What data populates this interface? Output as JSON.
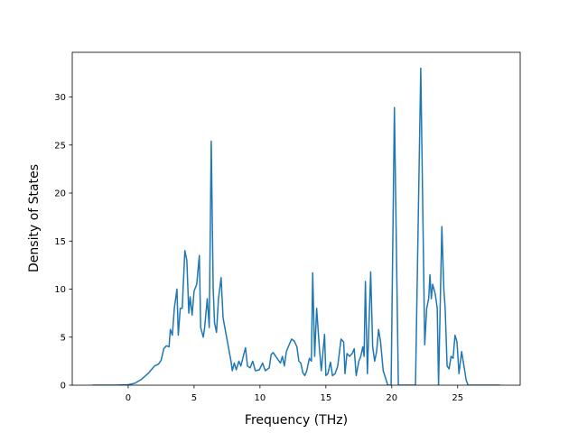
{
  "chart_data": {
    "type": "line",
    "xlabel": "Frequency (THz)",
    "ylabel": "Density of States",
    "color": "#1f77b4",
    "x": [
      -2.7,
      -1,
      0,
      0.5,
      1,
      1.5,
      2,
      2.3,
      2.5,
      2.7,
      2.9,
      3.1,
      3.2,
      3.35,
      3.5,
      3.7,
      3.8,
      3.95,
      4.1,
      4.3,
      4.45,
      4.6,
      4.7,
      4.85,
      5.0,
      5.2,
      5.4,
      5.5,
      5.7,
      5.8,
      6.0,
      6.15,
      6.3,
      6.45,
      6.55,
      6.7,
      6.85,
      7.05,
      7.2,
      7.4,
      7.6,
      7.8,
      7.9,
      8.05,
      8.2,
      8.4,
      8.55,
      8.9,
      9.05,
      9.25,
      9.45,
      9.65,
      9.95,
      10.2,
      10.4,
      10.7,
      10.85,
      11.0,
      11.3,
      11.55,
      11.7,
      11.85,
      12.0,
      12.15,
      12.4,
      12.6,
      12.8,
      12.95,
      13.1,
      13.25,
      13.4,
      13.55,
      13.75,
      13.9,
      14.0,
      14.15,
      14.3,
      14.5,
      14.65,
      14.75,
      14.9,
      15.0,
      15.15,
      15.35,
      15.5,
      15.7,
      15.9,
      16.15,
      16.35,
      16.45,
      16.6,
      16.8,
      17.0,
      17.15,
      17.3,
      17.5,
      17.65,
      17.8,
      17.9,
      18.0,
      18.15,
      18.4,
      18.55,
      18.7,
      18.85,
      19.0,
      19.15,
      19.35,
      19.7,
      19.95,
      20.2,
      20.5,
      21.8,
      22.2,
      22.5,
      22.65,
      22.8,
      22.9,
      23.0,
      23.1,
      23.3,
      23.45,
      23.55,
      23.8,
      23.95,
      24.05,
      24.2,
      24.35,
      24.5,
      24.65,
      24.8,
      24.95,
      25.1,
      25.3,
      25.5,
      25.65,
      25.8,
      28.2
    ],
    "values": [
      0,
      0,
      0.05,
      0.2,
      0.6,
      1.2,
      2.0,
      2.2,
      2.6,
      3.8,
      4.1,
      4.0,
      5.8,
      5.2,
      8.0,
      10.0,
      5.2,
      8.0,
      8.0,
      14.0,
      13.0,
      7.5,
      9.2,
      7.3,
      9.8,
      10.5,
      13.5,
      6.0,
      5.0,
      6.0,
      9.0,
      6.0,
      25.4,
      10.0,
      6.5,
      5.5,
      9.0,
      11.2,
      7.0,
      5.5,
      4.0,
      2.5,
      1.5,
      2.3,
      1.6,
      2.5,
      2.0,
      3.9,
      2.0,
      1.8,
      2.5,
      1.5,
      1.6,
      2.3,
      1.5,
      1.8,
      3.2,
      3.4,
      2.8,
      2.3,
      3.0,
      2.0,
      3.5,
      4.0,
      4.8,
      4.6,
      4.0,
      2.5,
      2.3,
      1.3,
      1.0,
      1.5,
      2.8,
      2.5,
      11.7,
      3.0,
      8.0,
      4.0,
      1.5,
      3.0,
      5.3,
      1.0,
      1.2,
      2.4,
      1.0,
      1.2,
      2.0,
      4.8,
      4.5,
      1.2,
      3.3,
      3.0,
      3.3,
      3.8,
      1.0,
      2.5,
      3.0,
      4.0,
      3.0,
      10.8,
      1.2,
      11.8,
      4.0,
      2.5,
      3.5,
      5.8,
      4.5,
      1.5,
      0,
      0,
      28.9,
      0,
      0,
      33.0,
      4.2,
      8.0,
      9.0,
      11.5,
      9.0,
      10.5,
      9.5,
      8.0,
      0,
      16.5,
      10,
      8.0,
      2.0,
      1.7,
      3.0,
      2.8,
      5.2,
      4.5,
      1.2,
      3.5,
      1.8,
      0.5,
      0,
      0
    ],
    "xlim": [
      -4.245,
      29.745
    ],
    "xticks": [
      0,
      5,
      10,
      15,
      20,
      25
    ],
    "ylim": [
      0,
      34.65
    ],
    "yticks": [
      0,
      5,
      10,
      15,
      20,
      25,
      30
    ]
  }
}
